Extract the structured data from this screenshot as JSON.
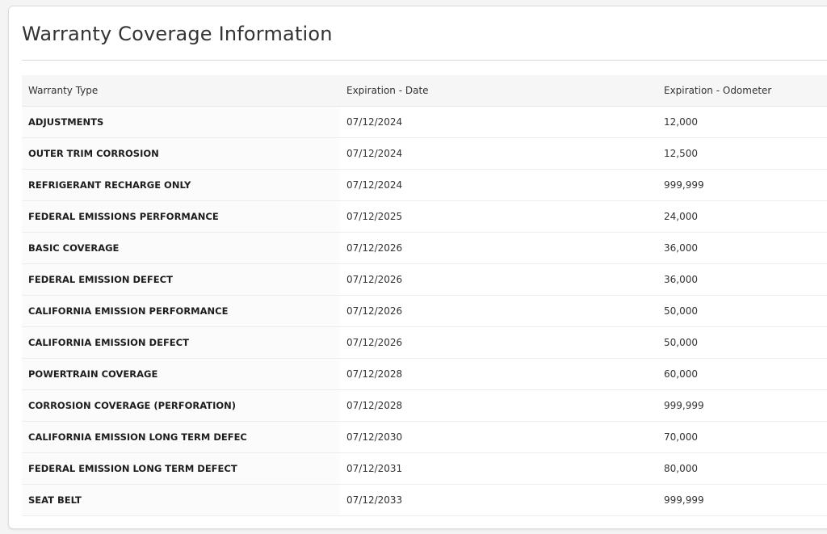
{
  "title": "Warranty Coverage Information",
  "table": {
    "headers": [
      "Warranty Type",
      "Expiration - Date",
      "Expiration - Odometer"
    ],
    "rows": [
      [
        "ADJUSTMENTS",
        "07/12/2024",
        "12,000"
      ],
      [
        "OUTER TRIM CORROSION",
        "07/12/2024",
        "12,500"
      ],
      [
        "REFRIGERANT RECHARGE ONLY",
        "07/12/2024",
        "999,999"
      ],
      [
        "FEDERAL EMISSIONS PERFORMANCE",
        "07/12/2025",
        "24,000"
      ],
      [
        "BASIC COVERAGE",
        "07/12/2026",
        "36,000"
      ],
      [
        "FEDERAL EMISSION DEFECT",
        "07/12/2026",
        "36,000"
      ],
      [
        "CALIFORNIA EMISSION PERFORMANCE",
        "07/12/2026",
        "50,000"
      ],
      [
        "CALIFORNIA EMISSION DEFECT",
        "07/12/2026",
        "50,000"
      ],
      [
        "POWERTRAIN COVERAGE",
        "07/12/2028",
        "60,000"
      ],
      [
        "CORROSION COVERAGE (PERFORATION)",
        "07/12/2028",
        "999,999"
      ],
      [
        "CALIFORNIA EMISSION LONG TERM DEFEC",
        "07/12/2030",
        "70,000"
      ],
      [
        "FEDERAL EMISSION LONG TERM DEFECT",
        "07/12/2031",
        "80,000"
      ],
      [
        "SEAT BELT",
        "07/12/2033",
        "999,999"
      ]
    ]
  }
}
